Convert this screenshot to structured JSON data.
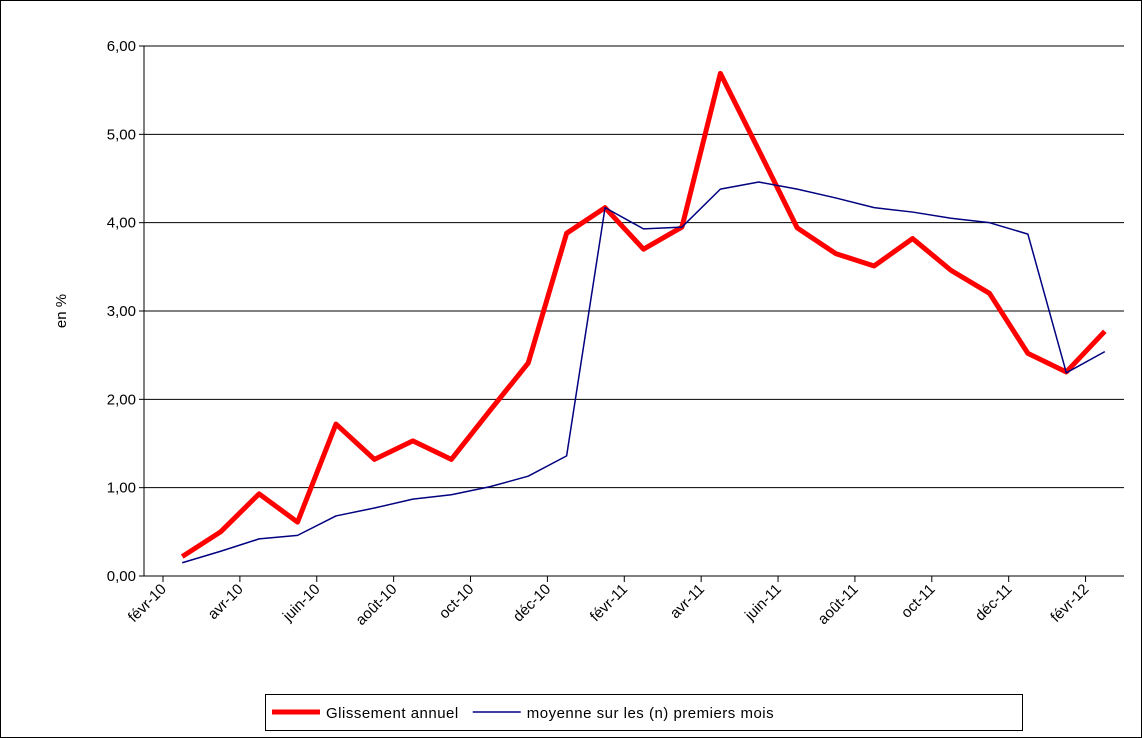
{
  "chart_data": {
    "type": "line",
    "y_label": "en %",
    "categories": [
      "févr-10",
      null,
      "avr-10",
      null,
      "juin-10",
      null,
      "août-10",
      null,
      "oct-10",
      null,
      "déc-10",
      null,
      "févr-11",
      null,
      "avr-11",
      null,
      "juin-11",
      null,
      "août-11",
      null,
      "oct-11",
      null,
      "déc-11",
      null,
      "févr-12"
    ],
    "series": [
      {
        "name": "Glissement annuel",
        "color": "#ff0000",
        "width": 5,
        "values": [
          0.22,
          0.5,
          0.93,
          0.61,
          1.72,
          1.32,
          1.53,
          1.32,
          1.87,
          2.41,
          3.88,
          4.17,
          3.7,
          3.95,
          5.69,
          4.82,
          3.94,
          3.65,
          3.51,
          3.82,
          3.46,
          3.2,
          2.52,
          2.31,
          2.77
        ]
      },
      {
        "name": "moyenne sur les (n) premiers mois",
        "color": "#000080",
        "width": 1.5,
        "values": [
          0.15,
          0.28,
          0.42,
          0.46,
          0.68,
          0.77,
          0.87,
          0.92,
          1.01,
          1.13,
          1.36,
          4.17,
          3.93,
          3.95,
          4.38,
          4.46,
          4.38,
          4.28,
          4.17,
          4.12,
          4.05,
          4.0,
          3.87,
          2.3,
          2.54
        ]
      }
    ],
    "ylim": [
      0,
      6
    ],
    "yticks": [
      {
        "value": 0,
        "label": "0,00"
      },
      {
        "value": 1,
        "label": "1,00"
      },
      {
        "value": 2,
        "label": "2,00"
      },
      {
        "value": 3,
        "label": "3,00"
      },
      {
        "value": 4,
        "label": "4,00"
      },
      {
        "value": 5,
        "label": "5,00"
      },
      {
        "value": 6,
        "label": "6,00"
      }
    ],
    "grid": true,
    "legend": "bottom"
  }
}
